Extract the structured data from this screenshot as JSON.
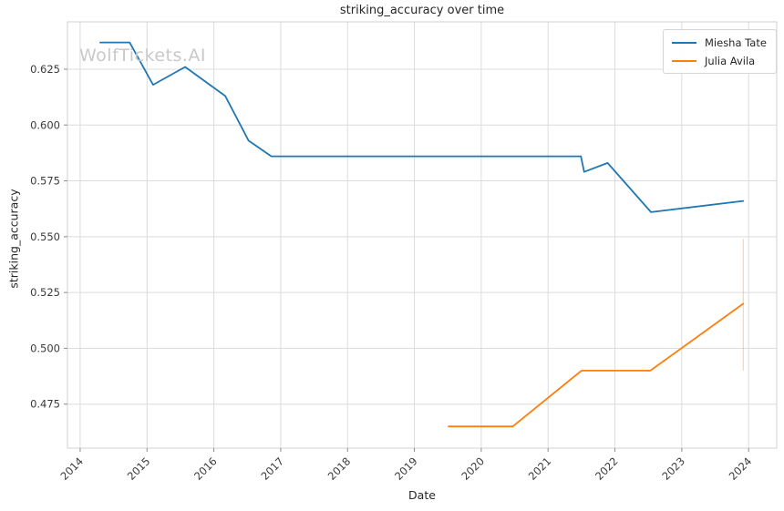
{
  "chart_data": {
    "type": "line",
    "title": "striking_accuracy over time",
    "xlabel": "Date",
    "ylabel": "striking_accuracy",
    "watermark": "WolfTickets.AI",
    "grid": true,
    "legend": {
      "position": "upper right",
      "entries": [
        "Miesha Tate",
        "Julia Avila"
      ]
    },
    "xlim": [
      2013.81,
      2024.42
    ],
    "ylim": [
      0.4553,
      0.6462
    ],
    "x_ticks": [
      2014,
      2015,
      2016,
      2017,
      2018,
      2019,
      2020,
      2021,
      2022,
      2023,
      2024
    ],
    "y_ticks": [
      0.475,
      0.5,
      0.525,
      0.55,
      0.575,
      0.6,
      0.625
    ],
    "series": [
      {
        "name": "Miesha Tate",
        "color": "#1f77b4",
        "points": [
          [
            2014.3,
            0.637
          ],
          [
            2014.74,
            0.637
          ],
          [
            2015.09,
            0.618
          ],
          [
            2015.57,
            0.626
          ],
          [
            2016.17,
            0.613
          ],
          [
            2016.52,
            0.593
          ],
          [
            2016.86,
            0.586
          ],
          [
            2021.49,
            0.586
          ],
          [
            2021.54,
            0.579
          ],
          [
            2021.89,
            0.583
          ],
          [
            2022.54,
            0.561
          ],
          [
            2023.92,
            0.566
          ]
        ],
        "error_bars": []
      },
      {
        "name": "Julia Avila",
        "color": "#ff7f0e",
        "points": [
          [
            2019.51,
            0.465
          ],
          [
            2020.47,
            0.465
          ],
          [
            2021.5,
            0.49
          ],
          [
            2022.53,
            0.49
          ],
          [
            2023.92,
            0.52
          ]
        ],
        "error_bars": [
          {
            "x": 2023.92,
            "low": 0.49,
            "high": 0.549
          }
        ]
      }
    ]
  },
  "colors": {
    "background": "#ffffff",
    "grid": "#dcdcdc",
    "spine": "#d0d0d0",
    "tick": "#8a8a8a",
    "text": "#262626",
    "watermark": "#c9c9c9"
  }
}
